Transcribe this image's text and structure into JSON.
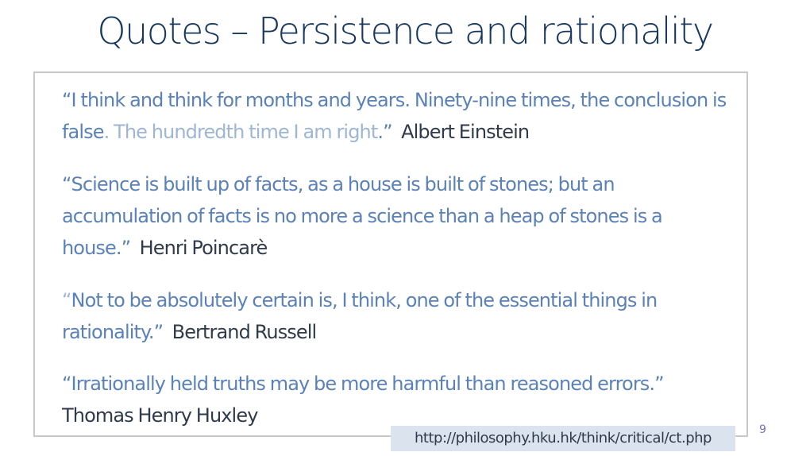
{
  "slide": {
    "title": "Quotes – Persistence and rationality",
    "page_number": "9"
  },
  "quotes": [
    {
      "text_main": "“I think and think for months and years. Ninety-nine times, the conclusion is false",
      "text_light": ". The hundredth time I am right",
      "text_close": ".”",
      "author": "Albert Einstein"
    },
    {
      "text_main": "“Science is built up of facts, as a house is built of stones; but an accumulation of facts is no more a science than a heap of stones is a house.”",
      "author": "Henri Poincarè"
    },
    {
      "text_light": "“",
      "text_main": "Not to be absolutely certain is, I think, one of the essential things in rationality.”",
      "author": "Bertrand Russell"
    },
    {
      "text_main": "“Irrationally held truths may be more harmful than reasoned errors.”",
      "author": "Thomas Henry Huxley"
    }
  ],
  "source": {
    "url_text": "http://philosophy.hku.hk/think/critical/ct.php"
  },
  "colors": {
    "title": "#17375e",
    "quote_text": "#5b82b8",
    "quote_text_light": "#9fb6d2",
    "author": "#2f3a4a",
    "box_border": "#c8c8c8",
    "link_background": "#dbe3ef",
    "page_number": "#7a6fb0"
  }
}
